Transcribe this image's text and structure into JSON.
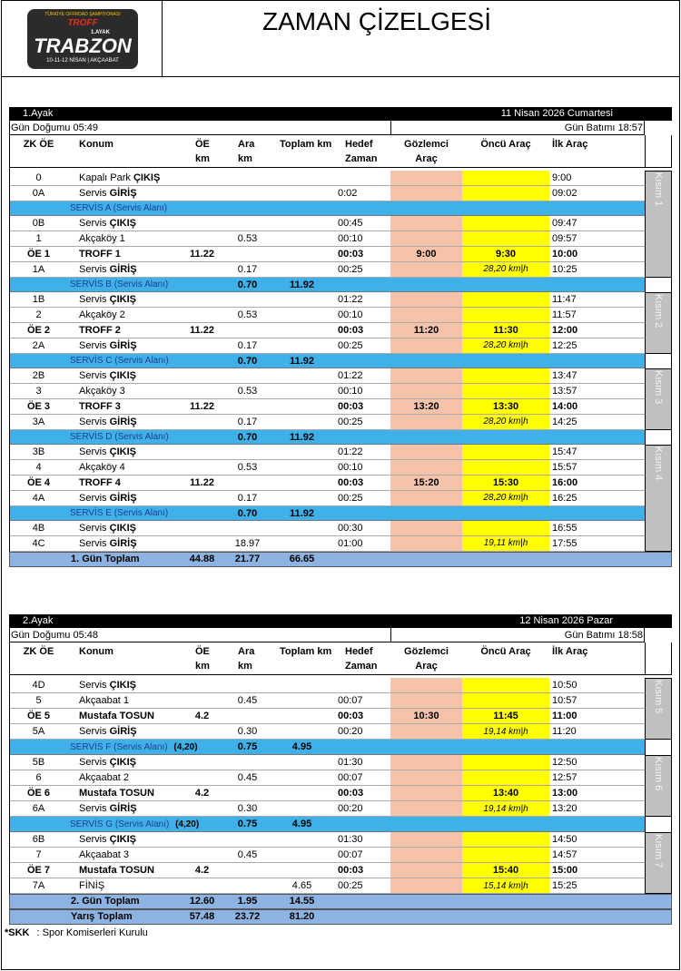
{
  "logo": {
    "series": "TÜRKİYE OFFROAD ŞAMPİYONASI",
    "brand": "TROFF",
    "round": "1.AYAK",
    "city": "TRABZON",
    "dates": "10-11-12 NİSAN | AKÇAABAT"
  },
  "title": "ZAMAN ÇİZELGESİ",
  "columns": {
    "zk": "ZK ÖE",
    "konum": "Konum",
    "oe": "ÖE\nkm",
    "ara": "Ara\nkm",
    "toplam": "Toplam km",
    "hedef": "Hedef\nZaman",
    "goz": "Gözlemci\nAraç",
    "oncu": "Öncü Araç",
    "ilk": "İlk  Araç"
  },
  "legs": [
    {
      "name": "1.Ayak",
      "date": "11 Nisan 2026 Cumartesi",
      "sunrise": "Gün Doğumu 05:49",
      "sunset": "Gün Batımı 18:57",
      "body": [
        {
          "kisim": "Kısım 1",
          "rows": [
            {
              "zk": "0",
              "konum": "Kapalı Park",
              "konum_bold": "ÇIKIŞ",
              "ilk": "9:00"
            },
            {
              "zk": "0A",
              "konum": "Servis",
              "konum_bold": "GİRİŞ",
              "hedef": "0:02",
              "ilk": "09:02"
            },
            {
              "servis": "SERVİS A (Servis Alanı)"
            },
            {
              "zk": "0B",
              "konum": "Servis",
              "konum_bold": "ÇIKIŞ",
              "hedef": "00:45",
              "ilk": "09:47"
            },
            {
              "zk": "1",
              "konum": "Akçaköy 1",
              "ara": "0.53",
              "hedef": "00:10",
              "ilk": "09:57"
            },
            {
              "zk": "ÖE 1",
              "konum_bold": "TROFF 1",
              "oe": "11.22",
              "hedef": "00:03",
              "gozlemci": "9:00",
              "oncu": "9:30",
              "ilk": "10:00",
              "strong": true
            },
            {
              "zk": "1A",
              "konum": "Servis",
              "konum_bold": "GİRİŞ",
              "ara": "0.17",
              "hedef": "00:25",
              "oncu_hiz": "28,20 km|h",
              "ilk": "10:25"
            }
          ]
        },
        {
          "servis": "SERVİS B (Servis Alanı)",
          "ara": "0.70",
          "toplam": "11.92"
        },
        {
          "kisim": "Kısım 2",
          "rows": [
            {
              "zk": "1B",
              "konum": "Servis",
              "konum_bold": "ÇIKIŞ",
              "hedef": "01:22",
              "ilk": "11:47"
            },
            {
              "zk": "2",
              "konum": "Akçaköy 2",
              "ara": "0.53",
              "hedef": "00:10",
              "ilk": "11:57"
            },
            {
              "zk": "ÖE 2",
              "konum_bold": "TROFF 2",
              "oe": "11.22",
              "hedef": "00:03",
              "gozlemci": "11:20",
              "oncu": "11:30",
              "ilk": "12:00",
              "strong": true
            },
            {
              "zk": "2A",
              "konum": "Servis",
              "konum_bold": "GİRİŞ",
              "ara": "0.17",
              "hedef": "00:25",
              "oncu_hiz": "28,20 km|h",
              "ilk": "12:25"
            }
          ]
        },
        {
          "servis": "SERVİS C (Servis Alanı)",
          "ara": "0.70",
          "toplam": "11.92"
        },
        {
          "kisim": "Kısım 3",
          "rows": [
            {
              "zk": "2B",
              "konum": "Servis",
              "konum_bold": "ÇIKIŞ",
              "hedef": "01:22",
              "ilk": "13:47"
            },
            {
              "zk": "3",
              "konum": "Akçaköy 3",
              "ara": "0.53",
              "hedef": "00:10",
              "ilk": "13:57"
            },
            {
              "zk": "ÖE 3",
              "konum_bold": "TROFF 3",
              "oe": "11.22",
              "hedef": "00:03",
              "gozlemci": "13:20",
              "oncu": "13:30",
              "ilk": "14:00",
              "strong": true
            },
            {
              "zk": "3A",
              "konum": "Servis",
              "konum_bold": "GİRİŞ",
              "ara": "0.17",
              "hedef": "00:25",
              "oncu_hiz": "28,20 km|h",
              "ilk": "14:25"
            }
          ]
        },
        {
          "servis": "SERVİS D (Servis Alanı)",
          "ara": "0.70",
          "toplam": "11.92"
        },
        {
          "kisim": "Kısım 4",
          "rows": [
            {
              "zk": "3B",
              "konum": "Servis",
              "konum_bold": "ÇIKIŞ",
              "hedef": "01:22",
              "ilk": "15:47"
            },
            {
              "zk": "4",
              "konum": "Akçaköy 4",
              "ara": "0.53",
              "hedef": "00:10",
              "ilk": "15:57"
            },
            {
              "zk": "ÖE 4",
              "konum_bold": "TROFF 4",
              "oe": "11.22",
              "hedef": "00:03",
              "gozlemci": "15:20",
              "oncu": "15:30",
              "ilk": "16:00",
              "strong": true
            },
            {
              "zk": "4A",
              "konum": "Servis",
              "konum_bold": "GİRİŞ",
              "ara": "0.17",
              "hedef": "00:25",
              "oncu_hiz": "28,20 km|h",
              "ilk": "16:25"
            },
            {
              "servis": "SERVİS E (Servis Alanı)",
              "ara": "0.70",
              "toplam": "11.92"
            },
            {
              "zk": "4B",
              "konum": "Servis",
              "konum_bold": "ÇIKIŞ",
              "hedef": "00:30",
              "ilk": "16:55"
            },
            {
              "zk": "4C",
              "konum": "Servis",
              "konum_bold": "GİRİŞ",
              "ara": "18.97",
              "hedef": "01:00",
              "oncu_hiz": "19,11 km|h",
              "ilk": "17:55"
            }
          ]
        }
      ],
      "totals": [
        {
          "label": "1. Gün Toplam",
          "oe": "44.88",
          "ara": "21.77",
          "toplam": "66.65"
        }
      ]
    },
    {
      "name": "2.Ayak",
      "date": "12 Nisan 2026 Pazar",
      "sunrise": "Gün Doğumu 05:48",
      "sunset": "Gün Batımı 18:58",
      "body": [
        {
          "kisim": "Kısım 5",
          "rows": [
            {
              "zk": "4D",
              "konum": "Servis",
              "konum_bold": "ÇIKIŞ",
              "ilk": "10:50"
            },
            {
              "zk": "5",
              "konum": "Akçaabat 1",
              "ara": "0.45",
              "hedef": "00:07",
              "ilk": "10:57"
            },
            {
              "zk": "ÖE 5",
              "konum_bold": "Mustafa TOSUN",
              "oe": "4.2",
              "hedef": "00:03",
              "gozlemci": "10:30",
              "oncu": "11:45",
              "ilk": "11:00",
              "strong": true
            },
            {
              "zk": "5A",
              "konum": "Servis",
              "konum_bold": "GİRİŞ",
              "ara": "0.30",
              "hedef": "00:20",
              "oncu_hiz": "19,14 km|h",
              "ilk": "11:20"
            }
          ]
        },
        {
          "servis": "SERVİS F (Servis Alanı)",
          "servis_bold": "(4,20)",
          "ara": "0.75",
          "toplam": "4.95"
        },
        {
          "kisim": "Kısım 6",
          "rows": [
            {
              "zk": "5B",
              "konum": "Servis",
              "konum_bold": "ÇIKIŞ",
              "hedef": "01:30",
              "ilk": "12:50"
            },
            {
              "zk": "6",
              "konum": "Akçaabat 2",
              "ara": "0.45",
              "hedef": "00:07",
              "ilk": "12:57"
            },
            {
              "zk": "ÖE 6",
              "konum_bold": "Mustafa TOSUN",
              "oe": "4.2",
              "hedef": "00:03",
              "oncu": "13:40",
              "ilk": "13:00",
              "strong": true
            },
            {
              "zk": "6A",
              "konum": "Servis",
              "konum_bold": "GİRİŞ",
              "ara": "0.30",
              "hedef": "00:20",
              "oncu_hiz": "19,14 km|h",
              "ilk": "13:20"
            }
          ]
        },
        {
          "servis": "SERVİS G (Servis Alanı)",
          "servis_bold": "(4,20)",
          "ara": "0.75",
          "toplam": "4.95"
        },
        {
          "kisim": "Kısım 7",
          "rows": [
            {
              "zk": "6B",
              "konum": "Servis",
              "konum_bold": "ÇIKIŞ",
              "hedef": "01:30",
              "ilk": "14:50"
            },
            {
              "zk": "7",
              "konum": "Akçaabat 3",
              "ara": "0.45",
              "hedef": "00:07",
              "ilk": "14:57"
            },
            {
              "zk": "ÖE 7",
              "konum_bold": "Mustafa TOSUN",
              "oe": "4.2",
              "hedef": "00:03",
              "oncu": "15:40",
              "ilk": "15:00",
              "strong": true
            },
            {
              "zk": "7A",
              "konum": "FİNİŞ",
              "toplam": "4.65",
              "hedef": "00:25",
              "oncu_hiz": "15,14 km|h",
              "ilk": "15:25"
            }
          ]
        }
      ],
      "totals": [
        {
          "label": "2. Gün Toplam",
          "oe": "12.60",
          "ara": "1.95",
          "toplam": "14.55"
        },
        {
          "label": "Yarış Toplam",
          "oe": "57.48",
          "ara": "23.72",
          "toplam": "81.20"
        }
      ]
    }
  ],
  "footer": {
    "abbr": "*SKK",
    "text": ": Spor Komiserleri Kurulu"
  }
}
